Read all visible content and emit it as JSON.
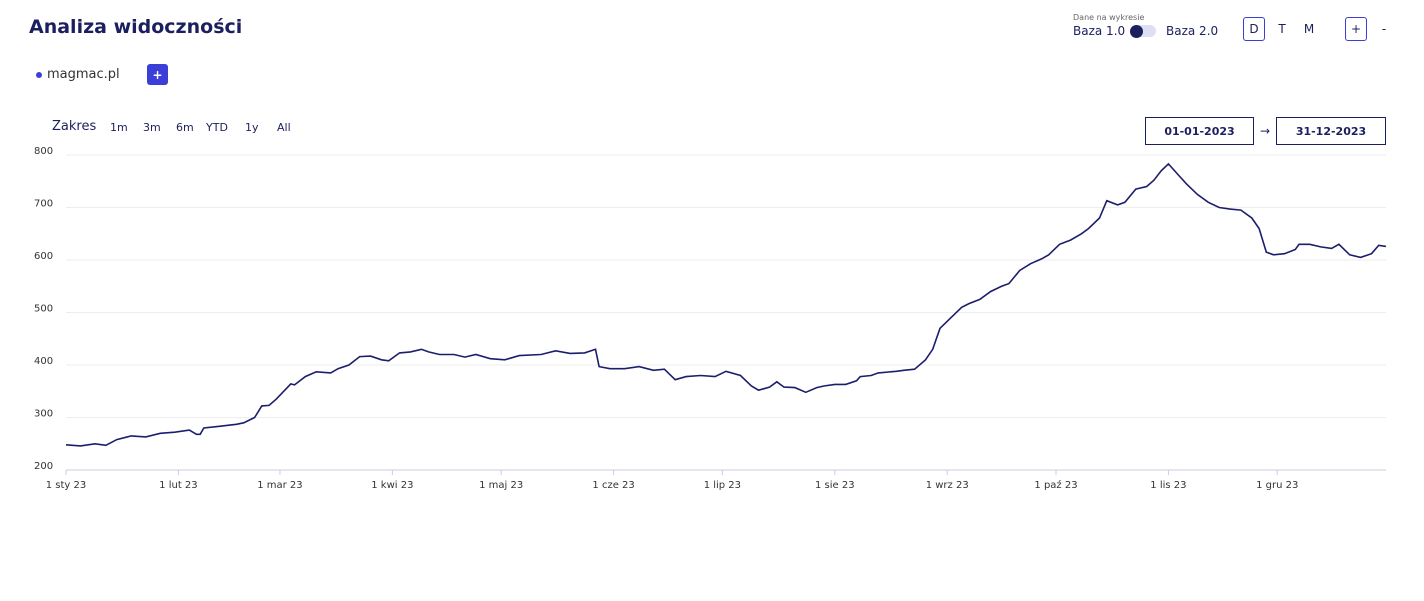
{
  "header": {
    "title": "Analiza widoczności",
    "data_source_label": "Dane na wykresie",
    "base_options": [
      "Baza 1.0",
      "Baza 2.0"
    ],
    "granularity": [
      "D",
      "T",
      "M"
    ],
    "zoom": [
      "+",
      "-"
    ]
  },
  "legend": {
    "add": "+"
  },
  "range": {
    "label": "Zakres",
    "presets": [
      "1m",
      "3m",
      "6m",
      "YTD",
      "1y",
      "All"
    ],
    "from": "01-01-2023",
    "arrow": "→",
    "to": "31-12-2023"
  },
  "chart_data": {
    "type": "line",
    "x": [
      0,
      4,
      8,
      11,
      14,
      18,
      22,
      26,
      30,
      34,
      36,
      37,
      38,
      42,
      47,
      49,
      52,
      54,
      56,
      58,
      62,
      63,
      66,
      69,
      73,
      75,
      78,
      81,
      84,
      87,
      89,
      92,
      95,
      98,
      100,
      103,
      107,
      110,
      113,
      117,
      121,
      125,
      131,
      135,
      139,
      143,
      146,
      147,
      150,
      154,
      158,
      162,
      165,
      168,
      171,
      175,
      179,
      182,
      186,
      189,
      191,
      194,
      196,
      198,
      201,
      204,
      207,
      209,
      212,
      215,
      218,
      219,
      222,
      224,
      229,
      231,
      234,
      237,
      239,
      241,
      244,
      247,
      249,
      252,
      255,
      258,
      260,
      263,
      266,
      269,
      271,
      274,
      277,
      280,
      282,
      285,
      287,
      290,
      292,
      295,
      298,
      300,
      302,
      304,
      307,
      309,
      312,
      315,
      318,
      321,
      324,
      327,
      329,
      331,
      333,
      336,
      339,
      340,
      343,
      346,
      349,
      351,
      354,
      357,
      360,
      362,
      364
    ],
    "series": [
      {
        "name": "magmac.pl",
        "color": "#1b1f6b",
        "values": [
          248,
          246,
          250,
          247,
          258,
          265,
          263,
          270,
          272,
          276,
          268,
          268,
          280,
          283,
          287,
          290,
          300,
          322,
          323,
          335,
          364,
          362,
          378,
          387,
          385,
          393,
          400,
          416,
          417,
          410,
          408,
          423,
          425,
          430,
          425,
          420,
          420,
          415,
          420,
          412,
          410,
          418,
          420,
          427,
          422,
          423,
          430,
          397,
          393,
          393,
          397,
          390,
          392,
          372,
          378,
          380,
          378,
          388,
          380,
          360,
          352,
          358,
          368,
          358,
          357,
          348,
          357,
          360,
          363,
          363,
          370,
          378,
          380,
          385,
          388,
          390,
          392,
          410,
          430,
          470,
          490,
          510,
          517,
          525,
          540,
          550,
          555,
          580,
          593,
          602,
          610,
          630,
          638,
          650,
          660,
          680,
          713,
          705,
          710,
          735,
          740,
          752,
          770,
          783,
          760,
          745,
          725,
          710,
          700,
          697,
          695,
          680,
          660,
          615,
          610,
          612,
          620,
          630,
          630,
          625,
          622,
          630,
          610,
          605,
          612,
          628,
          626
        ]
      }
    ],
    "xlim": [
      0,
      364
    ],
    "xticks": [
      {
        "value": 0,
        "label": "1 sty 23"
      },
      {
        "value": 31,
        "label": "1 lut 23"
      },
      {
        "value": 59,
        "label": "1 mar 23"
      },
      {
        "value": 90,
        "label": "1 kwi 23"
      },
      {
        "value": 120,
        "label": "1 maj 23"
      },
      {
        "value": 151,
        "label": "1 cze 23"
      },
      {
        "value": 181,
        "label": "1 lip 23"
      },
      {
        "value": 212,
        "label": "1 sie 23"
      },
      {
        "value": 243,
        "label": "1 wrz 23"
      },
      {
        "value": 273,
        "label": "1 paź 23"
      },
      {
        "value": 304,
        "label": "1 lis 23"
      },
      {
        "value": 334,
        "label": "1 gru 23"
      }
    ],
    "ylim": [
      200,
      800
    ],
    "yticks": [
      200,
      300,
      400,
      500,
      600,
      700,
      800
    ],
    "grid": true
  }
}
